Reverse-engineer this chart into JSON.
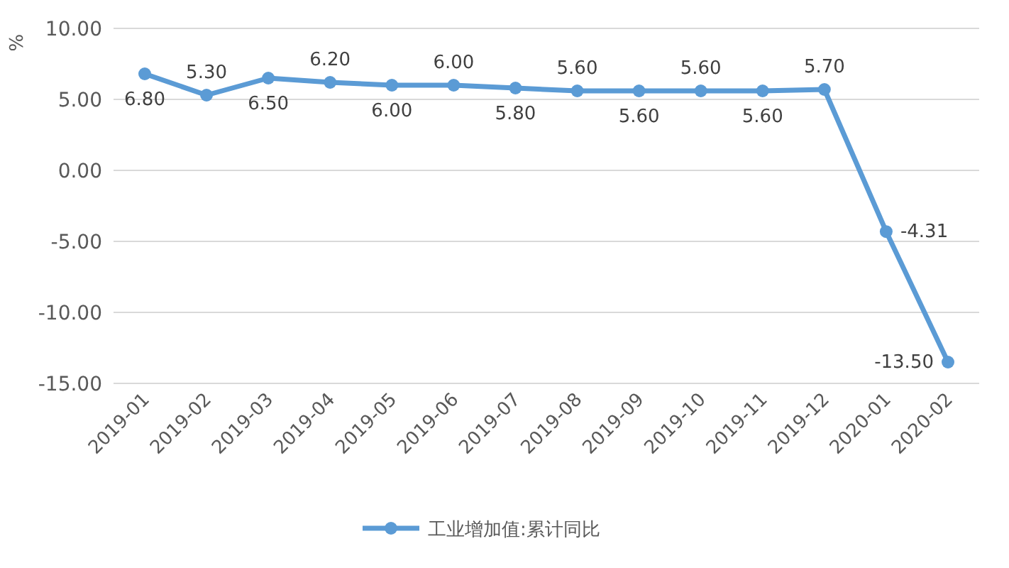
{
  "chart_data": {
    "type": "line",
    "ylabel": "%",
    "categories": [
      "2019-01",
      "2019-02",
      "2019-03",
      "2019-04",
      "2019-05",
      "2019-06",
      "2019-07",
      "2019-08",
      "2019-09",
      "2019-10",
      "2019-11",
      "2019-12",
      "2020-01",
      "2020-02"
    ],
    "series": [
      {
        "name": "工业增加值:累计同比",
        "color": "#5b9bd5",
        "values": [
          6.8,
          5.3,
          6.5,
          6.2,
          6.0,
          6.0,
          5.8,
          5.6,
          5.6,
          5.6,
          5.6,
          5.7,
          -4.31,
          -13.5
        ],
        "value_labels": [
          "6.80",
          "5.30",
          "6.50",
          "6.20",
          "6.00",
          "6.00",
          "5.80",
          "5.60",
          "5.60",
          "5.60",
          "5.60",
          "5.70",
          "-4.31",
          "-13.50"
        ]
      }
    ],
    "ylim": [
      -15,
      10
    ],
    "yticks": [
      {
        "value": -15,
        "label": "-15.00"
      },
      {
        "value": -10,
        "label": "-10.00"
      },
      {
        "value": -5,
        "label": "-5.00"
      },
      {
        "value": 0,
        "label": "0.00"
      },
      {
        "value": 5,
        "label": "5.00"
      },
      {
        "value": 10,
        "label": "10.00"
      }
    ],
    "grid": "y",
    "legend": "bottom",
    "marker": "circle",
    "line_style": "solid"
  }
}
